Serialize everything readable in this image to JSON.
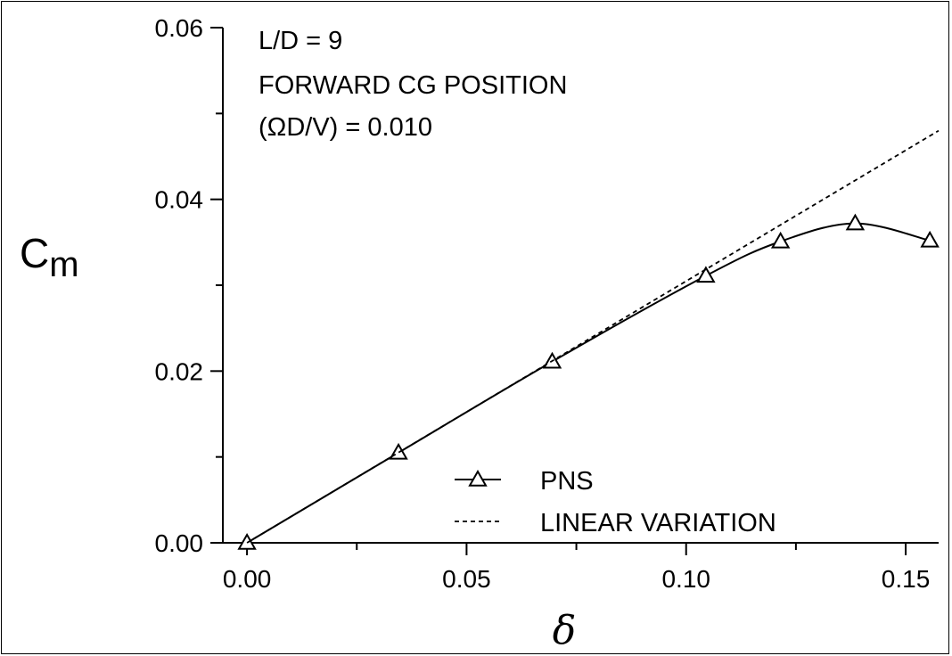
{
  "chart_data": {
    "type": "line",
    "xlabel": "δ",
    "ylabel": "C",
    "ylabel_sub": "m",
    "xlim": [
      -0.0055,
      0.1575
    ],
    "ylim": [
      0.0,
      0.06
    ],
    "x_ticks": [
      0.0,
      0.05,
      0.1,
      0.15
    ],
    "x_tick_labels": [
      "0.00",
      "0.05",
      "0.10",
      "0.15"
    ],
    "y_ticks": [
      0.0,
      0.02,
      0.04,
      0.06
    ],
    "y_tick_labels": [
      "0.00",
      "0.02",
      "0.04",
      "0.06"
    ],
    "annotations": [
      "L/D = 9",
      "FORWARD CG POSITION",
      "(ΩD/V) = 0.010"
    ],
    "legend_position": "bottom-center",
    "series": [
      {
        "name": "PNS",
        "style": "solid",
        "marker": "triangle",
        "x": [
          0.0,
          0.0345,
          0.0695,
          0.1045,
          0.1215,
          0.1385,
          0.1555
        ],
        "y": [
          0.0,
          0.0105,
          0.0211,
          0.0311,
          0.0351,
          0.0372,
          0.0352
        ]
      },
      {
        "name": "LINEAR VARIATION",
        "style": "dashed",
        "marker": "none",
        "x": [
          0.0,
          0.1575
        ],
        "y": [
          0.0,
          0.048
        ]
      }
    ]
  }
}
